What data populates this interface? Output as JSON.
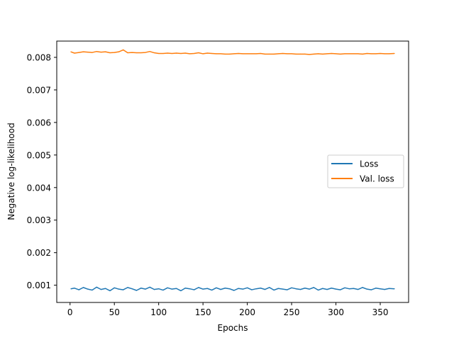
{
  "chart_data": {
    "type": "line",
    "title": "",
    "xlabel": "Epochs",
    "ylabel": "Negative log-likelihood",
    "xlim": [
      -15,
      382
    ],
    "ylim": [
      0.00047,
      0.0085
    ],
    "x_ticks": [
      0,
      50,
      100,
      150,
      200,
      250,
      300,
      350
    ],
    "y_ticks": [
      0.001,
      0.002,
      0.003,
      0.004,
      0.005,
      0.006,
      0.007,
      0.008
    ],
    "y_tick_labels": [
      "0.001",
      "0.002",
      "0.003",
      "0.004",
      "0.005",
      "0.006",
      "0.007",
      "0.008"
    ],
    "grid": false,
    "legend_position": "center-right",
    "epochs_range": [
      1,
      366
    ],
    "series": [
      {
        "name": "Loss",
        "color": "#1f77b4",
        "x": [
          1,
          5,
          10,
          15,
          20,
          25,
          30,
          35,
          40,
          45,
          50,
          55,
          60,
          65,
          70,
          75,
          80,
          85,
          90,
          95,
          100,
          105,
          110,
          115,
          120,
          125,
          130,
          135,
          140,
          145,
          150,
          155,
          160,
          165,
          170,
          175,
          180,
          185,
          190,
          195,
          200,
          205,
          210,
          215,
          220,
          225,
          230,
          235,
          240,
          245,
          250,
          255,
          260,
          265,
          270,
          275,
          280,
          285,
          290,
          295,
          300,
          305,
          310,
          315,
          320,
          325,
          330,
          335,
          340,
          345,
          350,
          355,
          360,
          366
        ],
        "values": [
          0.00089,
          0.00091,
          0.00086,
          0.00093,
          0.00088,
          0.00085,
          0.00094,
          0.00087,
          0.0009,
          0.00083,
          0.00092,
          0.00088,
          0.00086,
          0.00093,
          0.00089,
          0.00084,
          0.00091,
          0.00088,
          0.00094,
          0.00087,
          0.00089,
          0.00085,
          0.00092,
          0.00088,
          0.0009,
          0.00083,
          0.00091,
          0.00089,
          0.00086,
          0.00093,
          0.00088,
          0.0009,
          0.00085,
          0.00092,
          0.00087,
          0.00091,
          0.00089,
          0.00084,
          0.0009,
          0.00088,
          0.00092,
          0.00086,
          0.00089,
          0.00091,
          0.00087,
          0.00093,
          0.00085,
          0.0009,
          0.00088,
          0.00086,
          0.00092,
          0.00089,
          0.00087,
          0.00091,
          0.00088,
          0.00093,
          0.00085,
          0.0009,
          0.00087,
          0.00091,
          0.00088,
          0.00086,
          0.00092,
          0.00089,
          0.0009,
          0.00087,
          0.00093,
          0.00088,
          0.00086,
          0.00091,
          0.00089,
          0.00087,
          0.0009,
          0.00089
        ]
      },
      {
        "name": "Val. loss",
        "color": "#ff7f0e",
        "x": [
          1,
          5,
          10,
          15,
          20,
          25,
          30,
          35,
          40,
          45,
          50,
          55,
          60,
          65,
          70,
          75,
          80,
          85,
          90,
          95,
          100,
          105,
          110,
          115,
          120,
          125,
          130,
          135,
          140,
          145,
          150,
          155,
          160,
          165,
          170,
          175,
          180,
          185,
          190,
          195,
          200,
          205,
          210,
          215,
          220,
          225,
          230,
          235,
          240,
          245,
          250,
          255,
          260,
          265,
          270,
          275,
          280,
          285,
          290,
          295,
          300,
          305,
          310,
          315,
          320,
          325,
          330,
          335,
          340,
          345,
          350,
          355,
          360,
          366
        ],
        "values": [
          0.00817,
          0.00813,
          0.00815,
          0.00817,
          0.00816,
          0.00815,
          0.00818,
          0.00816,
          0.00817,
          0.00814,
          0.00815,
          0.00817,
          0.00823,
          0.00814,
          0.00815,
          0.00814,
          0.00814,
          0.00815,
          0.00818,
          0.00814,
          0.00812,
          0.00812,
          0.00813,
          0.00812,
          0.00813,
          0.00812,
          0.00813,
          0.00811,
          0.00812,
          0.00814,
          0.00811,
          0.00813,
          0.00812,
          0.00811,
          0.00811,
          0.0081,
          0.0081,
          0.00811,
          0.00812,
          0.00811,
          0.00811,
          0.00811,
          0.00811,
          0.00812,
          0.0081,
          0.0081,
          0.0081,
          0.00811,
          0.00812,
          0.00811,
          0.00811,
          0.0081,
          0.0081,
          0.0081,
          0.00809,
          0.0081,
          0.00811,
          0.0081,
          0.00811,
          0.00812,
          0.00811,
          0.0081,
          0.00811,
          0.00811,
          0.00811,
          0.00811,
          0.0081,
          0.00812,
          0.00811,
          0.00811,
          0.00812,
          0.00811,
          0.00811,
          0.00812
        ]
      }
    ]
  }
}
